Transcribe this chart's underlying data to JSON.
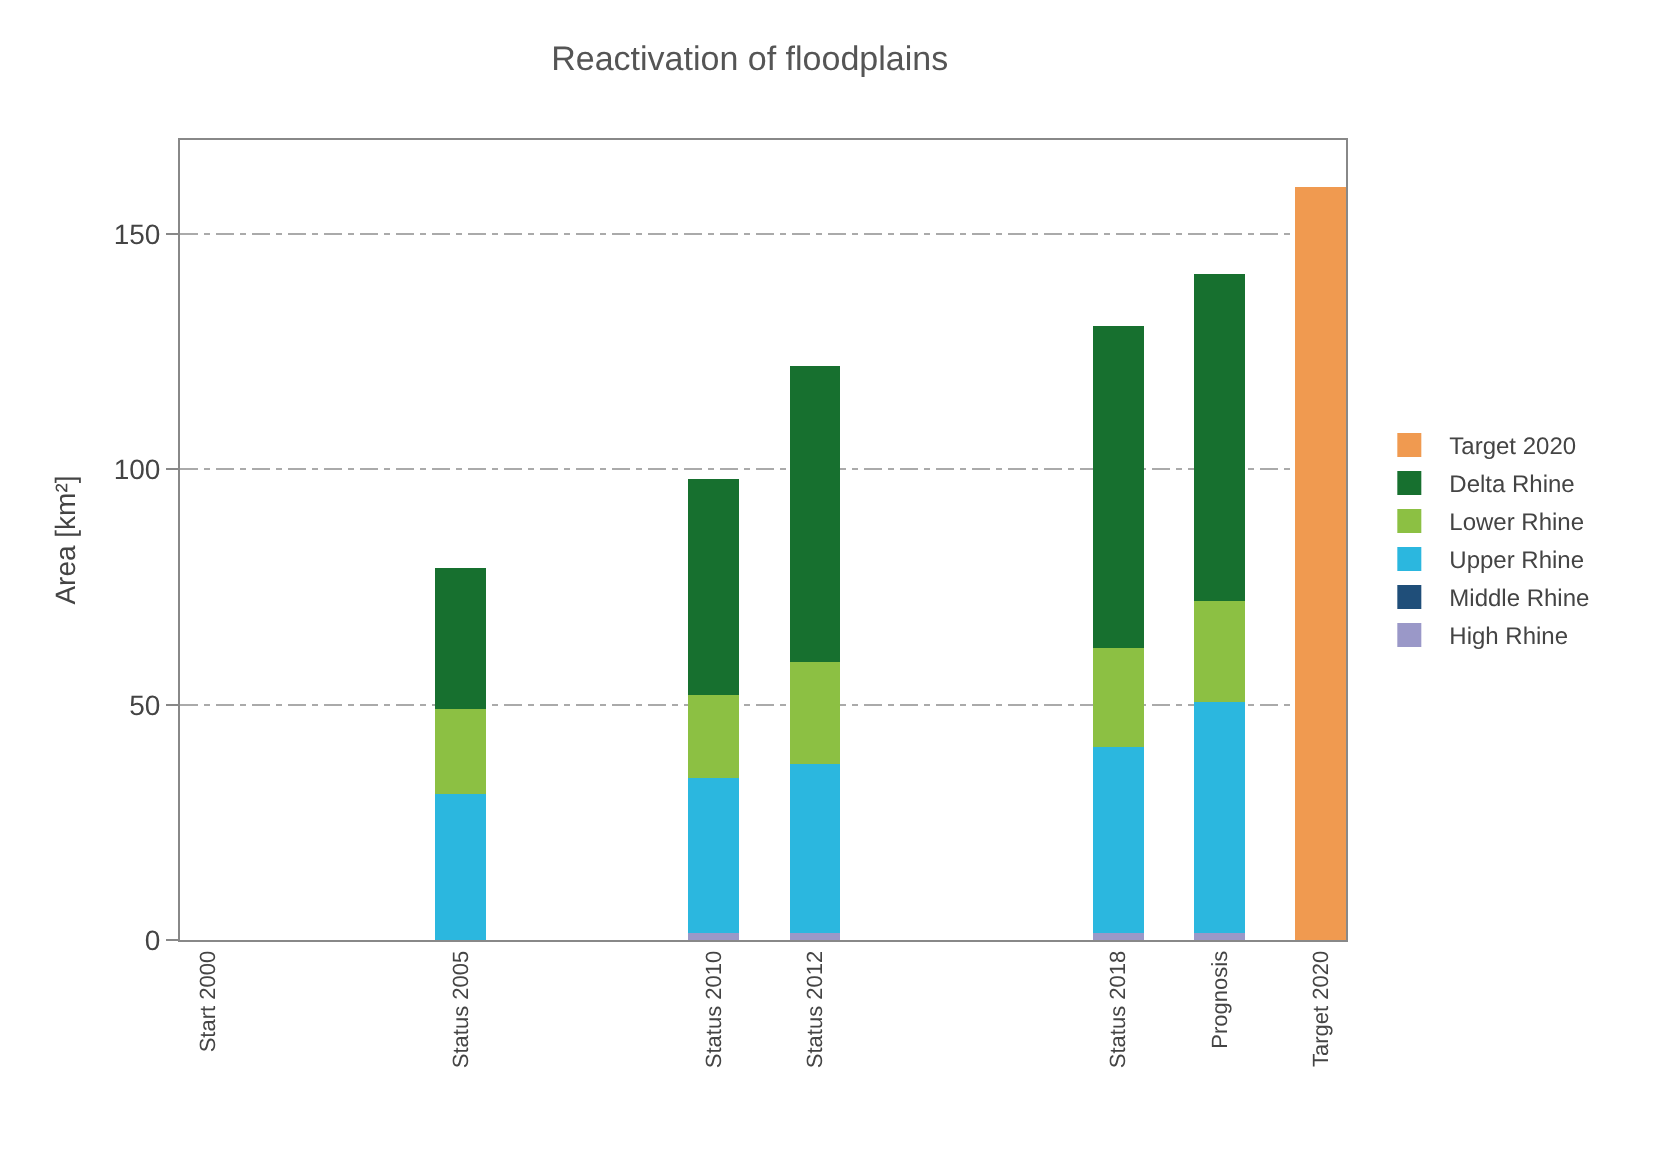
{
  "chart_data": {
    "type": "bar",
    "title": "Reactivation of floodplains",
    "ylabel": "Area [km²]",
    "stacked": true,
    "categories": [
      "Start 2000",
      null,
      null,
      null,
      null,
      "Status 2005",
      null,
      null,
      null,
      null,
      "Status 2010",
      null,
      "Status 2012",
      null,
      null,
      null,
      null,
      null,
      "Status 2018",
      null,
      "Prognosis",
      null,
      "Target 2020"
    ],
    "series": [
      {
        "name": "High Rhine",
        "color": "#9a98c8",
        "values": [
          null,
          null,
          null,
          null,
          null,
          null,
          null,
          null,
          null,
          null,
          1.5,
          null,
          1.5,
          null,
          null,
          null,
          null,
          null,
          1.5,
          null,
          1.5,
          null,
          null
        ]
      },
      {
        "name": "Middle Rhine",
        "color": "#1f4e79",
        "values": [
          null,
          null,
          null,
          null,
          null,
          null,
          null,
          null,
          null,
          null,
          null,
          null,
          null,
          null,
          null,
          null,
          null,
          null,
          null,
          null,
          null,
          null,
          null
        ]
      },
      {
        "name": "Upper Rhine",
        "color": "#2bb7df",
        "values": [
          null,
          null,
          null,
          null,
          null,
          31,
          null,
          null,
          null,
          null,
          33,
          null,
          36,
          null,
          null,
          null,
          null,
          null,
          39.5,
          null,
          49,
          null,
          null
        ]
      },
      {
        "name": "Lower Rhine",
        "color": "#8cc043",
        "values": [
          null,
          null,
          null,
          null,
          null,
          18,
          null,
          null,
          null,
          null,
          17.5,
          null,
          21.5,
          null,
          null,
          null,
          null,
          null,
          21,
          null,
          21.5,
          null,
          null
        ]
      },
      {
        "name": "Delta Rhine",
        "color": "#17702f",
        "values": [
          null,
          null,
          null,
          null,
          null,
          30,
          null,
          null,
          null,
          null,
          46,
          null,
          63,
          null,
          null,
          null,
          null,
          null,
          68.5,
          null,
          69.5,
          null,
          null
        ]
      },
      {
        "name": "Target 2020",
        "color": "#f09a50",
        "values": [
          null,
          null,
          null,
          null,
          null,
          null,
          null,
          null,
          null,
          null,
          null,
          null,
          null,
          null,
          null,
          null,
          null,
          null,
          null,
          null,
          null,
          null,
          160
        ]
      }
    ],
    "ylim": [
      0,
      170
    ],
    "yticks": [
      0,
      50,
      100,
      150
    ],
    "grid": "y",
    "legend": "right"
  }
}
